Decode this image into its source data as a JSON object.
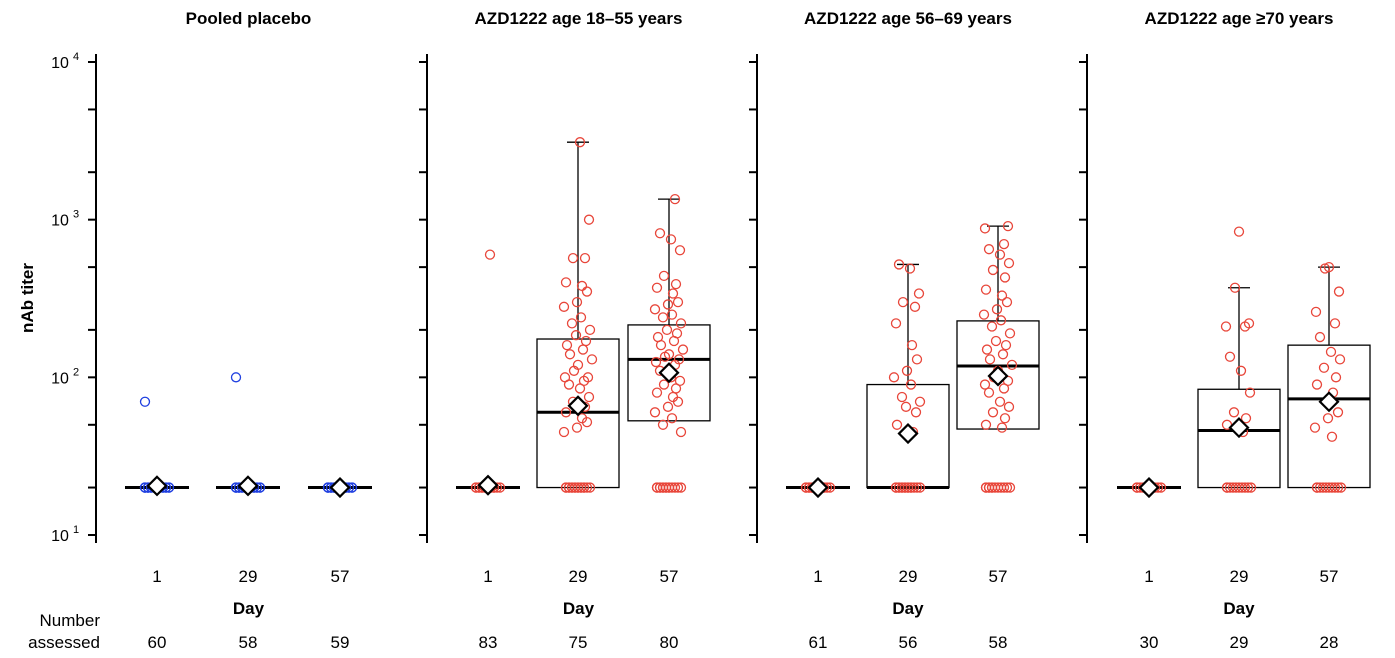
{
  "ylabel": "nAb titer",
  "xlabel": "Day",
  "number_assessed_label": [
    "Number",
    "assessed"
  ],
  "colors": {
    "placebo": "#1f3fe0",
    "vaccine": "#e8463a",
    "mean_marker": "#000000"
  },
  "chart_data": {
    "type": "box",
    "y_scale": "log10",
    "ylim": [
      10,
      10000
    ],
    "y_ticks": [
      10,
      100,
      1000,
      10000
    ],
    "y_tick_labels": [
      [
        "10",
        "1"
      ],
      [
        "10",
        "2"
      ],
      [
        "10",
        "3"
      ],
      [
        "10",
        "4"
      ]
    ],
    "panels": [
      {
        "title": "Pooled placebo",
        "color": "#1f3fe0",
        "groups": [
          {
            "day": "1",
            "n": "60",
            "box": null,
            "geomean": 20.5,
            "points": [
              20,
              20,
              20,
              20,
              20,
              20,
              20,
              20,
              20,
              20,
              20,
              20,
              20,
              20,
              20,
              20,
              20,
              20,
              20,
              20,
              70
            ]
          },
          {
            "day": "29",
            "n": "58",
            "box": null,
            "geomean": 20.5,
            "points": [
              20,
              20,
              20,
              20,
              20,
              20,
              20,
              20,
              20,
              20,
              20,
              20,
              20,
              20,
              20,
              20,
              20,
              20,
              20,
              20,
              100
            ]
          },
          {
            "day": "57",
            "n": "59",
            "box": null,
            "geomean": 20,
            "points": [
              20,
              20,
              20,
              20,
              20,
              20,
              20,
              20,
              20,
              20,
              20,
              20,
              20,
              20,
              20,
              20,
              20,
              20,
              20,
              20
            ]
          }
        ]
      },
      {
        "title": "AZD1222 age 18–55 years",
        "color": "#e8463a",
        "groups": [
          {
            "day": "1",
            "n": "83",
            "box": null,
            "geomean": 20.7,
            "points": [
              20,
              20,
              20,
              20,
              20,
              20,
              20,
              20,
              20,
              20,
              20,
              20,
              20,
              20,
              20,
              20,
              600
            ]
          },
          {
            "day": "29",
            "n": "75",
            "box": {
              "q1": 20,
              "median": 60,
              "q3": 175,
              "whisker_low": 20,
              "whisker_high": 3100
            },
            "geomean": 66,
            "points": [
              20,
              20,
              20,
              20,
              20,
              20,
              20,
              20,
              20,
              20,
              20,
              20,
              20,
              20,
              20,
              20,
              3100,
              1000,
              570,
              570,
              400,
              380,
              350,
              300,
              280,
              240,
              220,
              200,
              185,
              170,
              160,
              150,
              140,
              130,
              120,
              110,
              100,
              100,
              95,
              90,
              85,
              75,
              70,
              65,
              60,
              55,
              52,
              48,
              45
            ]
          },
          {
            "day": "57",
            "n": "80",
            "box": {
              "q1": 53,
              "median": 130,
              "q3": 215,
              "whisker_low": 20,
              "whisker_high": 1350
            },
            "geomean": 107,
            "points": [
              20,
              20,
              20,
              20,
              20,
              20,
              20,
              20,
              20,
              20,
              20,
              20,
              20,
              20,
              1350,
              820,
              750,
              640,
              440,
              390,
              370,
              340,
              300,
              290,
              270,
              250,
              240,
              220,
              200,
              190,
              180,
              170,
              160,
              150,
              140,
              135,
              130,
              125,
              120,
              110,
              100,
              95,
              90,
              85,
              80,
              75,
              70,
              65,
              60,
              55,
              50,
              45
            ]
          }
        ]
      },
      {
        "title": "AZD1222 age 56–69 years",
        "color": "#e8463a",
        "groups": [
          {
            "day": "1",
            "n": "61",
            "box": null,
            "geomean": 20,
            "points": [
              20,
              20,
              20,
              20,
              20,
              20,
              20,
              20,
              20,
              20,
              20,
              20,
              20,
              20,
              20,
              20
            ]
          },
          {
            "day": "29",
            "n": "56",
            "box": {
              "q1": 20,
              "median": 20,
              "q3": 90,
              "whisker_low": 20,
              "whisker_high": 520
            },
            "geomean": 44,
            "points": [
              20,
              20,
              20,
              20,
              20,
              20,
              20,
              20,
              20,
              20,
              20,
              20,
              20,
              20,
              20,
              520,
              490,
              340,
              300,
              280,
              220,
              160,
              130,
              110,
              100,
              90,
              75,
              70,
              65,
              60,
              50,
              45
            ]
          },
          {
            "day": "57",
            "n": "58",
            "box": {
              "q1": 47,
              "median": 118,
              "q3": 228,
              "whisker_low": 20,
              "whisker_high": 910
            },
            "geomean": 102,
            "points": [
              20,
              20,
              20,
              20,
              20,
              20,
              20,
              20,
              20,
              20,
              20,
              20,
              910,
              880,
              700,
              650,
              600,
              530,
              480,
              430,
              360,
              330,
              300,
              270,
              250,
              230,
              210,
              190,
              170,
              160,
              150,
              140,
              130,
              120,
              110,
              100,
              95,
              90,
              85,
              80,
              70,
              65,
              60,
              55,
              50,
              48
            ]
          }
        ]
      },
      {
        "title": "AZD1222 age ≥70 years",
        "color": "#e8463a",
        "groups": [
          {
            "day": "1",
            "n": "30",
            "box": null,
            "geomean": 20,
            "points": [
              20,
              20,
              20,
              20,
              20,
              20,
              20,
              20,
              20,
              20
            ]
          },
          {
            "day": "29",
            "n": "29",
            "box": {
              "q1": 20,
              "median": 46,
              "q3": 84,
              "whisker_low": 20,
              "whisker_high": 370
            },
            "geomean": 48,
            "points": [
              20,
              20,
              20,
              20,
              20,
              20,
              20,
              20,
              20,
              20,
              840,
              370,
              220,
              210,
              210,
              135,
              110,
              80,
              60,
              55,
              50,
              45
            ]
          },
          {
            "day": "57",
            "n": "28",
            "box": {
              "q1": 20,
              "median": 73,
              "q3": 160,
              "whisker_low": 20,
              "whisker_high": 500
            },
            "geomean": 70,
            "points": [
              20,
              20,
              20,
              20,
              20,
              20,
              20,
              20,
              20,
              20,
              500,
              490,
              350,
              260,
              220,
              180,
              145,
              130,
              115,
              100,
              90,
              80,
              60,
              55,
              48,
              42
            ]
          }
        ]
      }
    ]
  }
}
